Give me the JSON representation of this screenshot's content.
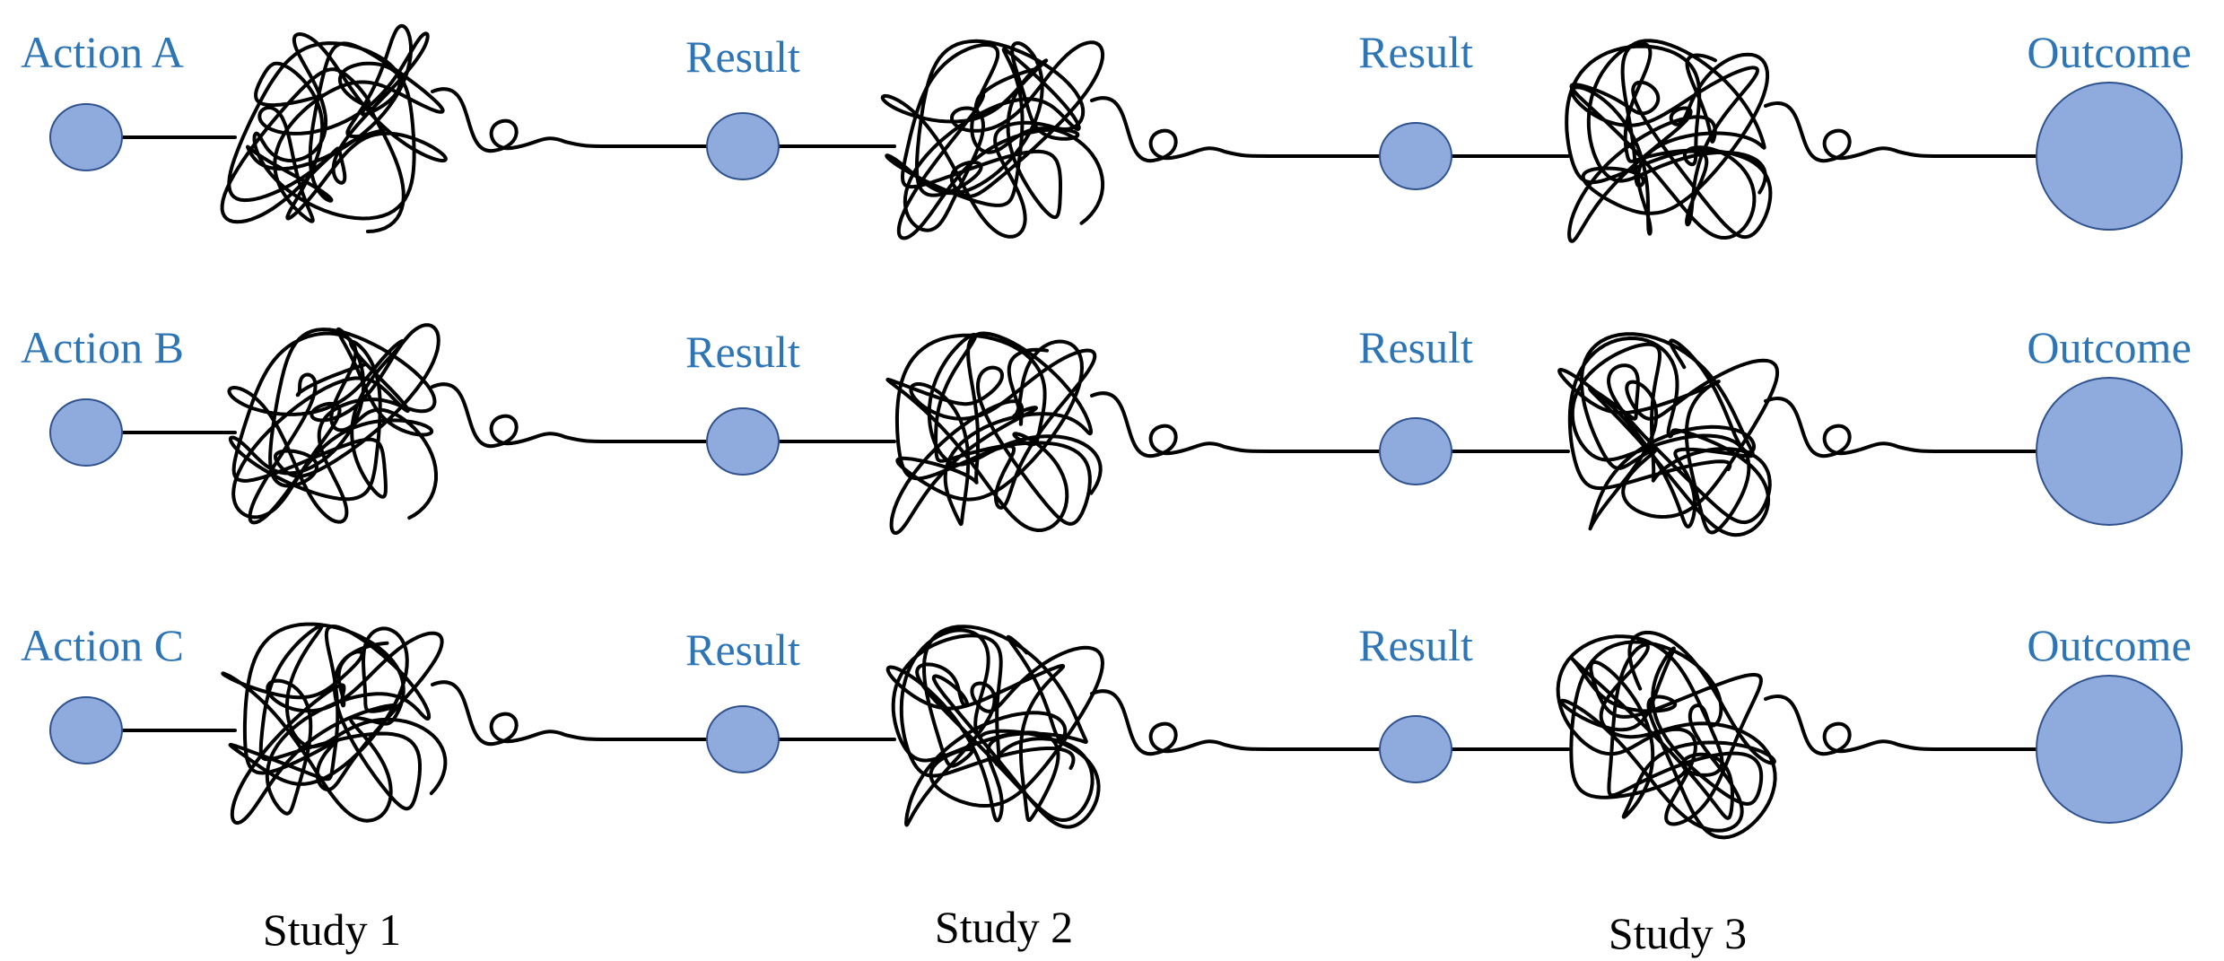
{
  "rows": [
    {
      "label": "Action A",
      "stages": [
        "Result",
        "Result",
        "Outcome"
      ]
    },
    {
      "label": "Action B",
      "stages": [
        "Result",
        "Result",
        "Outcome"
      ]
    },
    {
      "label": "Action C",
      "stages": [
        "Result",
        "Result",
        "Outcome"
      ]
    }
  ],
  "studies": [
    "Study 1",
    "Study 2",
    "Study 3"
  ]
}
